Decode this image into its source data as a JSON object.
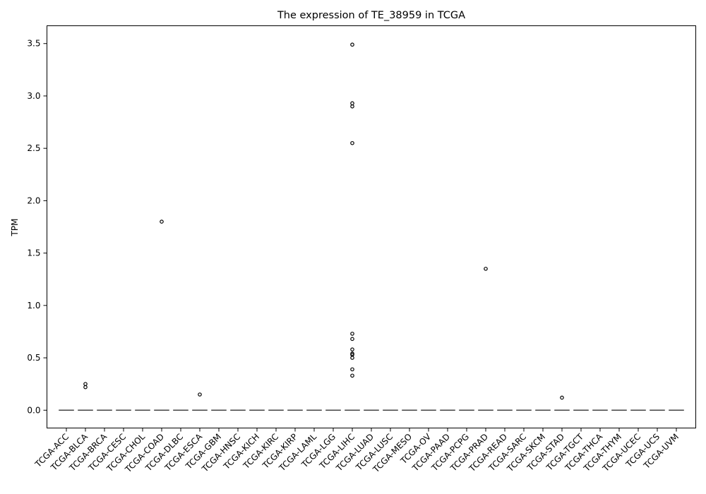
{
  "chart_data": {
    "type": "box",
    "title": "The expression of TE_38959 in TCGA",
    "xlabel": "",
    "ylabel": "TPM",
    "ylim": [
      -0.17,
      3.67
    ],
    "yticks": [
      0.0,
      0.5,
      1.0,
      1.5,
      2.0,
      2.5,
      3.0,
      3.5
    ],
    "ytick_labels": [
      "0.0",
      "0.5",
      "1.0",
      "1.5",
      "2.0",
      "2.5",
      "3.0",
      "3.5"
    ],
    "grid": false,
    "categories": [
      "TCGA-ACC",
      "TCGA-BLCA",
      "TCGA-BRCA",
      "TCGA-CESC",
      "TCGA-CHOL",
      "TCGA-COAD",
      "TCGA-DLBC",
      "TCGA-ESCA",
      "TCGA-GBM",
      "TCGA-HNSC",
      "TCGA-KICH",
      "TCGA-KIRC",
      "TCGA-KIRP",
      "TCGA-LAML",
      "TCGA-LGG",
      "TCGA-LIHC",
      "TCGA-LUAD",
      "TCGA-LUSC",
      "TCGA-MESO",
      "TCGA-OV",
      "TCGA-PAAD",
      "TCGA-PCPG",
      "TCGA-PRAD",
      "TCGA-READ",
      "TCGA-SARC",
      "TCGA-SKCM",
      "TCGA-STAD",
      "TCGA-TGCT",
      "TCGA-THCA",
      "TCGA-THYM",
      "TCGA-UCEC",
      "TCGA-UCS",
      "TCGA-UVM"
    ],
    "median": 0.0,
    "outliers": [
      {
        "category": "TCGA-BLCA",
        "values": [
          0.25,
          0.22
        ]
      },
      {
        "category": "TCGA-COAD",
        "values": [
          1.8
        ]
      },
      {
        "category": "TCGA-ESCA",
        "values": [
          0.15
        ]
      },
      {
        "category": "TCGA-LIHC",
        "values": [
          3.49,
          2.93,
          2.9,
          2.55,
          0.73,
          0.68,
          0.58,
          0.54,
          0.53,
          0.5,
          0.39,
          0.33
        ]
      },
      {
        "category": "TCGA-PRAD",
        "values": [
          1.35
        ]
      },
      {
        "category": "TCGA-STAD",
        "values": [
          0.12
        ]
      }
    ],
    "colors": {
      "box": "#4c72b0",
      "median": "#444444",
      "outlier": "#000000",
      "axis": "#000000"
    }
  }
}
